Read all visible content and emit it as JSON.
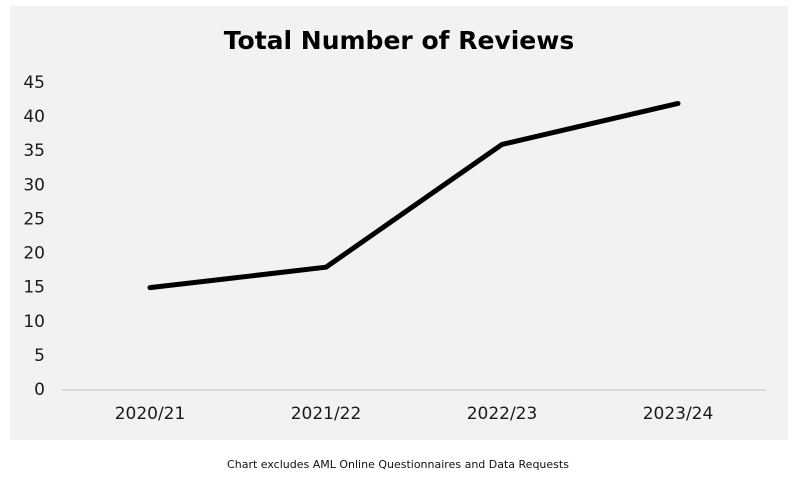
{
  "chart_data": {
    "type": "line",
    "title": "Total Number of Reviews",
    "xlabel": "",
    "ylabel": "",
    "categories": [
      "2020/21",
      "2021/22",
      "2022/23",
      "2023/24"
    ],
    "series": [
      {
        "values": [
          15,
          18,
          36,
          42
        ]
      }
    ],
    "ylim": [
      0,
      45
    ],
    "yticks": [
      0,
      5,
      10,
      15,
      20,
      25,
      30,
      35,
      40,
      45
    ],
    "grid": false,
    "legend": "none",
    "line_color": "#000000",
    "background_color": "#f2f2f2"
  },
  "footnote": "Chart excludes AML Online Questionnaires and Data Requests"
}
